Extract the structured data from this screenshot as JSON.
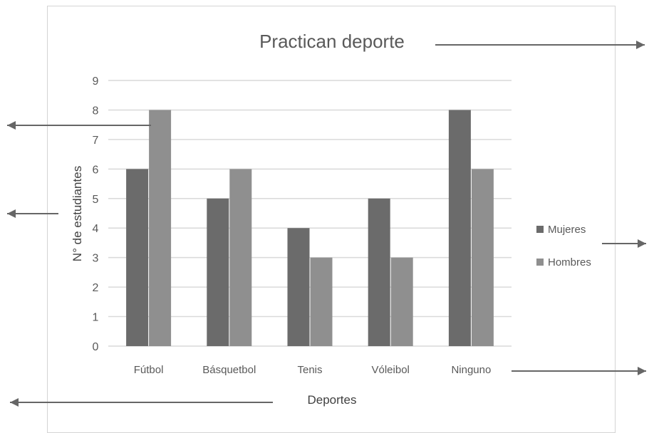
{
  "chart_data": {
    "type": "bar",
    "title": "Practican deporte",
    "xlabel": "Deportes",
    "ylabel": "N° de estudiantes",
    "categories": [
      "Fútbol",
      "Básquetbol",
      "Tenis",
      "Vóleibol",
      "Ninguno"
    ],
    "series": [
      {
        "name": "Mujeres",
        "values": [
          6,
          5,
          4,
          5,
          8
        ],
        "color": "#6b6b6b"
      },
      {
        "name": "Hombres",
        "values": [
          8,
          6,
          3,
          3,
          6
        ],
        "color": "#8f8f8f"
      }
    ],
    "ylim": [
      0,
      9
    ],
    "yticks": [
      0,
      1,
      2,
      3,
      4,
      5,
      6,
      7,
      8,
      9
    ],
    "grid": true,
    "legend": "right",
    "colors": {
      "grid": "#d9d9d9",
      "text": "#595959",
      "arrow": "#666666"
    }
  }
}
